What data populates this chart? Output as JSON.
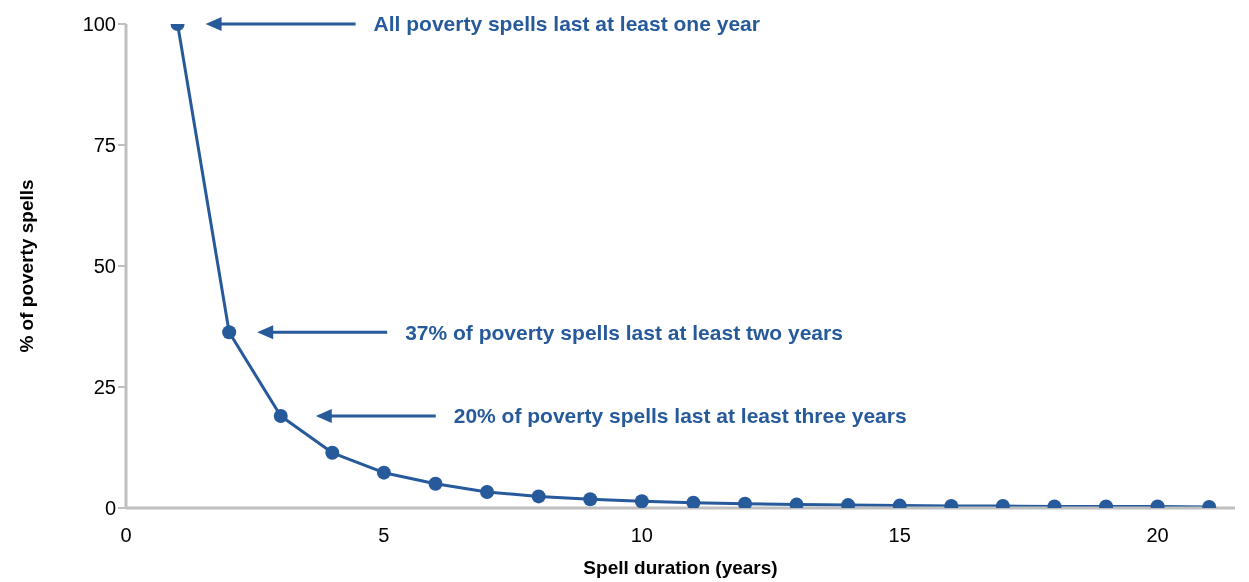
{
  "chart_data": {
    "type": "line",
    "xlabel": "Spell duration (years)",
    "ylabel": "% of poverty spells",
    "x": [
      1,
      2,
      3,
      4,
      5,
      6,
      7,
      8,
      9,
      10,
      11,
      12,
      13,
      14,
      15,
      16,
      17,
      18,
      19,
      20,
      21
    ],
    "series": [
      {
        "color": "#265a9b",
        "values": [
          100,
          36.3,
          19,
          11.4,
          7.3,
          5,
          3.3,
          2.4,
          1.8,
          1.4,
          1.1,
          0.9,
          0.7,
          0.6,
          0.5,
          0.4,
          0.4,
          0.3,
          0.3,
          0.3,
          0.2
        ]
      }
    ],
    "xlim": [
      0,
      21.5
    ],
    "xticks": [
      0,
      5,
      10,
      15,
      20
    ],
    "ylim": [
      0,
      100
    ],
    "yticks": [
      0,
      25,
      50,
      75,
      100
    ],
    "grid": false,
    "legend": false,
    "marker": "circle",
    "line_style": "solid",
    "annotations": [
      "All poverty spells last at least one year",
      "37% of poverty spells last at least two years",
      "20% of poverty spells last at least three years"
    ]
  }
}
